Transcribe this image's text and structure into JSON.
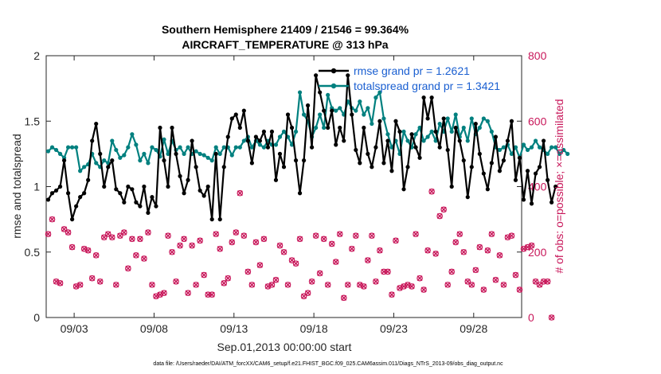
{
  "chart_data": {
    "type": "line",
    "title_line1": "Southern Hemisphere 21409 / 21546 = 99.364%",
    "title_line2": "AIRCRAFT_TEMPERATURE @ 313 hPa",
    "xlabel": "Sep.01,2013 00:00:00 start",
    "ylabel_left": "rmse and totalspread",
    "ylabel_right": "# of obs: o=possible; ×=assimilated",
    "footer": "data file: /Users/raeder/DAI/ATM_forcXX/CAM6_setup/f.e21.FHIST_BGC.f09_025.CAM6assim.011/Diags_NTrS_2013-09/obs_diag_output.nc",
    "x_tick_labels": [
      "09/03",
      "09/08",
      "09/13",
      "09/18",
      "09/23",
      "09/28"
    ],
    "x_tick_days": [
      3,
      8,
      13,
      18,
      23,
      28
    ],
    "xlim_days": [
      1.25,
      31
    ],
    "ylim_left": [
      0,
      2
    ],
    "ylim_right": [
      0,
      800
    ],
    "y_left_ticks": [
      "0",
      "0.5",
      "1",
      "1.5",
      "2"
    ],
    "y_right_ticks": [
      "0",
      "200",
      "400",
      "600",
      "800"
    ],
    "colors": {
      "rmse": "#000000",
      "spread": "#00807f",
      "obs": "#c8175a",
      "legend_text": "#1a5fd1"
    },
    "series": [
      {
        "name": "rmse grand pr = 1.2621",
        "axis": "left",
        "x_start_day": 1.375,
        "x_step_days": 0.25,
        "values": [
          0.9,
          0.95,
          0.97,
          1.0,
          1.2,
          0.95,
          0.75,
          0.85,
          0.92,
          0.95,
          1.05,
          1.35,
          1.48,
          1.25,
          1.0,
          1.15,
          1.2,
          0.98,
          0.95,
          0.88,
          1.0,
          0.98,
          0.88,
          0.85,
          1.0,
          0.8,
          0.92,
          0.85,
          1.45,
          1.2,
          1.0,
          1.45,
          1.25,
          1.08,
          0.95,
          1.05,
          1.35,
          1.15,
          0.97,
          0.93,
          1.0,
          0.75,
          1.25,
          0.75,
          1.15,
          1.38,
          1.52,
          1.55,
          1.45,
          1.58,
          1.35,
          1.18,
          1.38,
          1.35,
          1.42,
          1.3,
          1.42,
          1.05,
          1.25,
          1.15,
          1.55,
          1.45,
          1.2,
          0.95,
          1.2,
          1.62,
          1.3,
          1.85,
          1.72,
          1.58,
          1.45,
          1.58,
          1.32,
          1.45,
          1.35,
          1.85,
          1.55,
          1.28,
          1.18,
          1.45,
          1.25,
          1.15,
          1.3,
          1.5,
          1.18,
          1.35,
          1.12,
          1.5,
          1.42,
          0.98,
          1.15,
          1.4,
          1.3,
          1.22,
          1.68,
          1.52,
          1.68,
          1.42,
          1.3,
          1.52,
          1.28,
          1.0,
          1.45,
          1.35,
          1.2,
          0.92,
          1.15,
          1.48,
          1.25,
          1.1,
          0.98,
          1.18,
          1.38,
          1.12,
          1.2,
          1.35,
          1.5,
          1.05,
          1.22,
          0.9,
          1.12,
          0.87,
          1.1,
          1.15,
          1.35,
          1.05,
          0.88,
          1.0
        ]
      },
      {
        "name": "totalspread grand pr = 1.3421",
        "axis": "left",
        "x_start_day": 1.375,
        "x_step_days": 0.25,
        "values": [
          1.27,
          1.3,
          1.28,
          1.25,
          1.22,
          1.3,
          1.3,
          1.3,
          1.12,
          1.15,
          1.17,
          1.25,
          1.18,
          1.15,
          1.2,
          1.18,
          1.35,
          1.28,
          1.22,
          1.24,
          1.3,
          1.4,
          1.32,
          1.2,
          1.25,
          1.18,
          1.3,
          1.28,
          1.23,
          1.36,
          1.25,
          1.35,
          1.28,
          1.3,
          1.25,
          1.3,
          1.25,
          1.27,
          1.25,
          1.24,
          1.22,
          1.2,
          1.3,
          1.25,
          1.3,
          1.3,
          1.24,
          1.3,
          1.3,
          1.35,
          1.38,
          1.3,
          1.35,
          1.32,
          1.3,
          1.35,
          1.32,
          1.32,
          1.38,
          1.42,
          1.38,
          1.32,
          1.42,
          1.72,
          1.55,
          1.5,
          1.38,
          1.45,
          1.55,
          1.45,
          1.7,
          1.6,
          1.58,
          1.6,
          1.55,
          1.65,
          1.6,
          1.58,
          1.65,
          1.55,
          1.6,
          1.48,
          1.68,
          1.72,
          1.52,
          1.4,
          1.3,
          1.35,
          1.25,
          1.42,
          1.35,
          1.3,
          1.4,
          1.45,
          1.35,
          1.38,
          1.42,
          1.35,
          1.48,
          1.42,
          1.52,
          1.42,
          1.55,
          1.38,
          1.45,
          1.35,
          1.52,
          1.4,
          1.45,
          1.52,
          1.5,
          1.42,
          1.3,
          1.28,
          1.3,
          1.32,
          1.25,
          1.3,
          1.22,
          1.32,
          1.28,
          1.3,
          1.35,
          1.3,
          1.28,
          1.25,
          1.3,
          1.3,
          1.25,
          1.28,
          1.25
        ]
      },
      {
        "name": "obs",
        "axis": "right",
        "x_start_day": 1.375,
        "x_step_days": 0.25,
        "values": [
          255,
          300,
          110,
          105,
          270,
          260,
          215,
          95,
          100,
          210,
          205,
          120,
          190,
          110,
          245,
          255,
          245,
          100,
          250,
          260,
          150,
          240,
          190,
          240,
          180,
          260,
          100,
          65,
          70,
          75,
          250,
          200,
          110,
          220,
          240,
          75,
          220,
          100,
          235,
          130,
          70,
          70,
          255,
          210,
          105,
          120,
          230,
          260,
          380,
          250,
          140,
          100,
          230,
          160,
          240,
          95,
          100,
          115,
          220,
          200,
          100,
          175,
          165,
          240,
          65,
          75,
          110,
          250,
          135,
          240,
          100,
          225,
          170,
          255,
          60,
          100,
          210,
          250,
          100,
          95,
          175,
          250,
          110,
          205,
          140,
          140,
          70,
          235,
          90,
          95,
          100,
          95,
          255,
          120,
          85,
          205,
          385,
          195,
          310,
          330,
          100,
          140,
          230,
          255,
          200,
          110,
          100,
          145,
          215,
          85,
          205,
          255,
          115,
          190,
          100,
          245,
          250,
          130,
          85,
          210,
          215,
          220,
          110,
          100,
          110,
          110,
          0
        ]
      }
    ],
    "legend_placement": "top-right inside plot"
  }
}
